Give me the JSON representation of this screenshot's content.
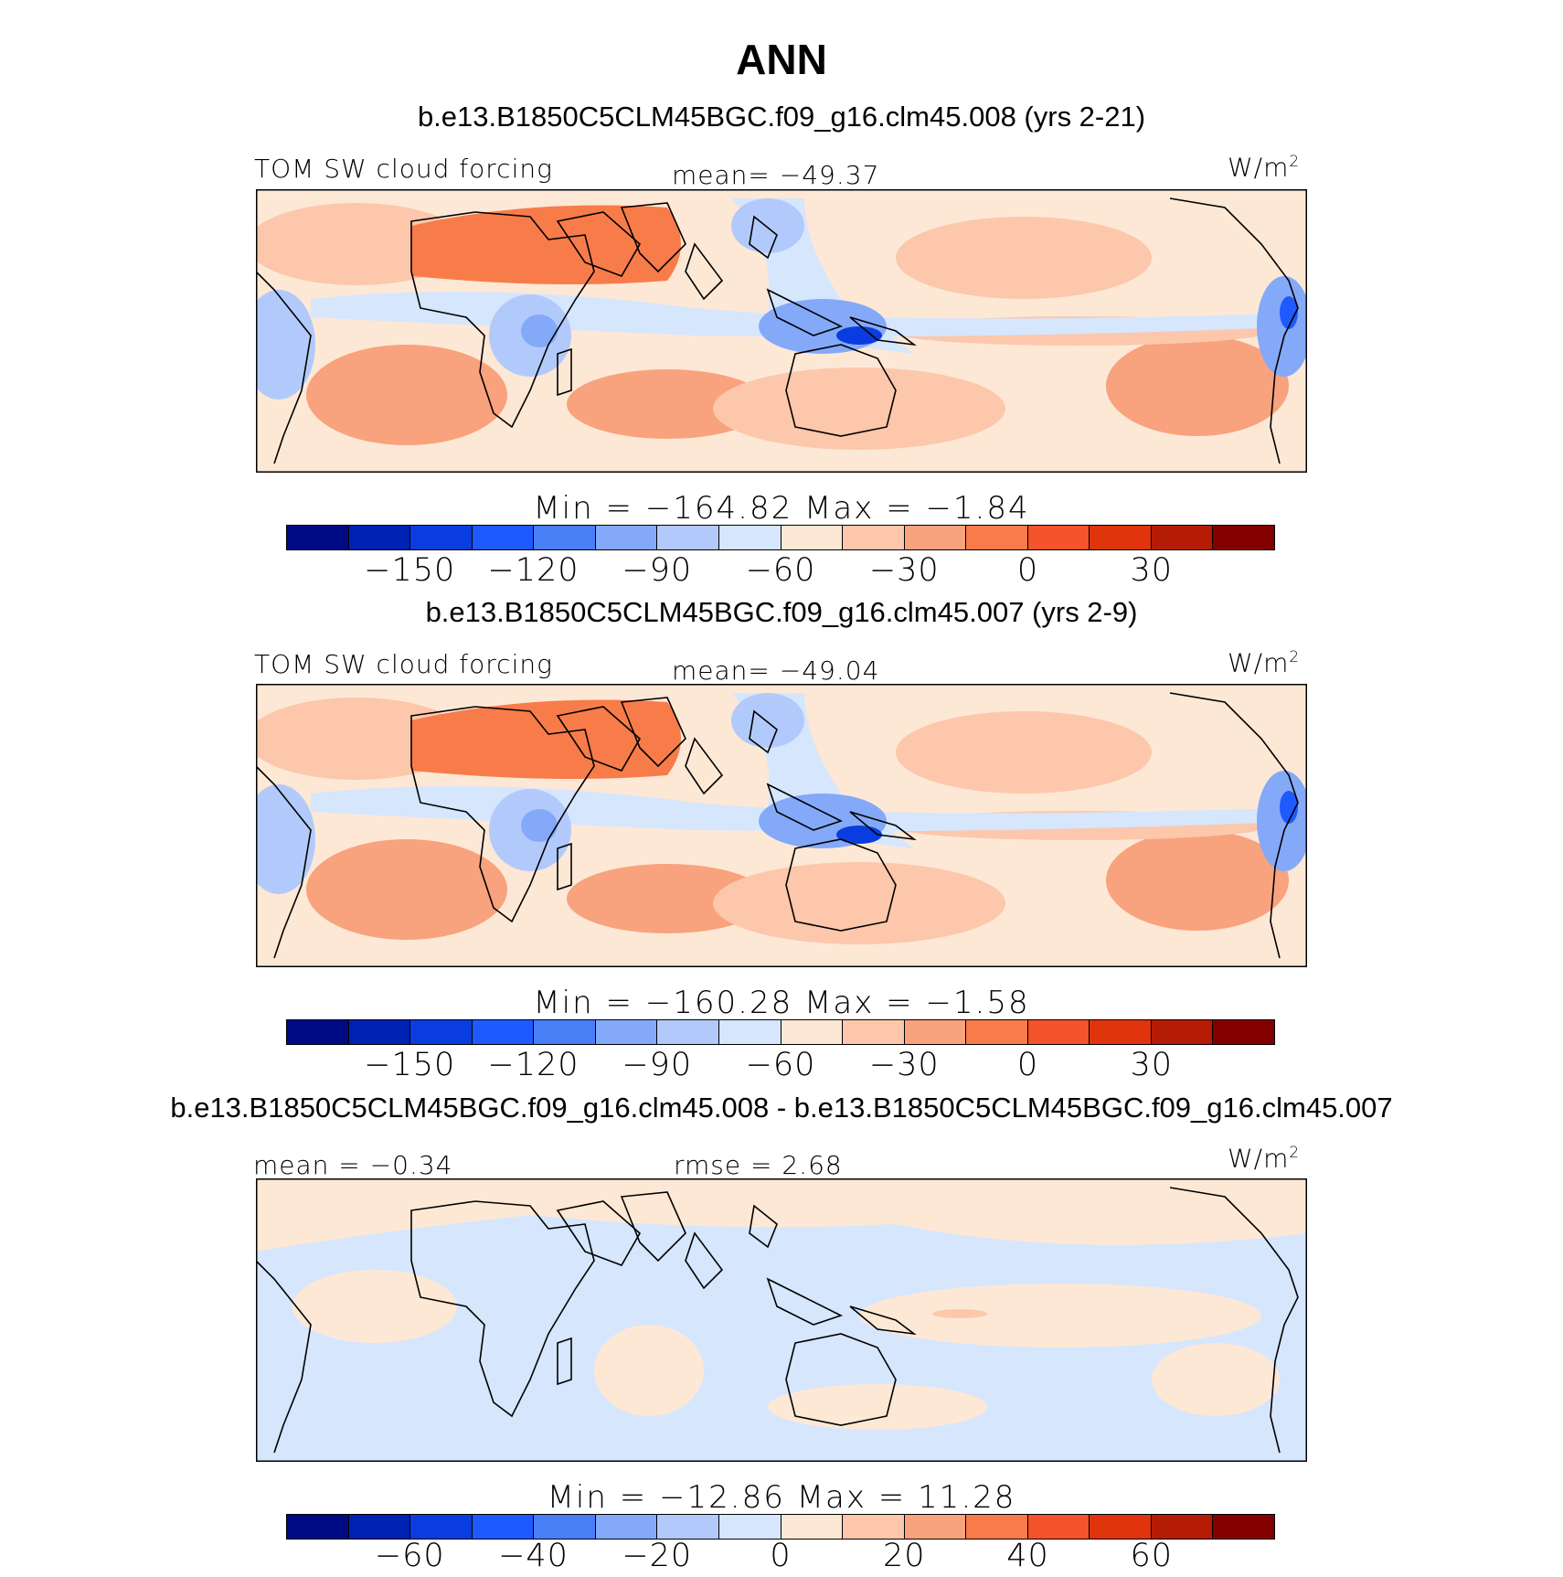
{
  "title": "ANN",
  "colors": [
    "#000a85",
    "#0022b3",
    "#0a3de0",
    "#1f5aff",
    "#4a7ef6",
    "#84a9f9",
    "#b2cafb",
    "#d6e6fd",
    "#fde8d6",
    "#fcc7ab",
    "#f8a27e",
    "#f87c4a",
    "#f5532b",
    "#e0340c",
    "#b51c05",
    "#840000"
  ],
  "panels": [
    {
      "case": "b.e13.B1850C5CLM45BGC.f09_g16.clm45.008 (yrs 2-21)",
      "left_label": "TOM SW cloud forcing",
      "center_label": "mean= −49.37",
      "units": "W/m",
      "units_sup": "2",
      "minmax": "Min = −164.82 Max =  −1.84",
      "ticks": [
        "−150",
        "−120",
        "−90",
        "−60",
        "−30",
        "0",
        "30"
      ]
    },
    {
      "case": "b.e13.B1850C5CLM45BGC.f09_g16.clm45.007 (yrs 2-9)",
      "left_label": "TOM SW cloud forcing",
      "center_label": "mean= −49.04",
      "units": "W/m",
      "units_sup": "2",
      "minmax": "Min = −160.28 Max =  −1.58",
      "ticks": [
        "−150",
        "−120",
        "−90",
        "−60",
        "−30",
        "0",
        "30"
      ]
    },
    {
      "case": "b.e13.B1850C5CLM45BGC.f09_g16.clm45.008 - b.e13.B1850C5CLM45BGC.f09_g16.clm45.007",
      "left_label": "mean =  −0.34",
      "center_label": "rmse =   2.68",
      "units": "W/m",
      "units_sup": "2",
      "minmax": "Min = −12.86 Max =  11.28",
      "ticks": [
        "−60",
        "−40",
        "−20",
        "0",
        "20",
        "40",
        "60"
      ]
    }
  ]
}
